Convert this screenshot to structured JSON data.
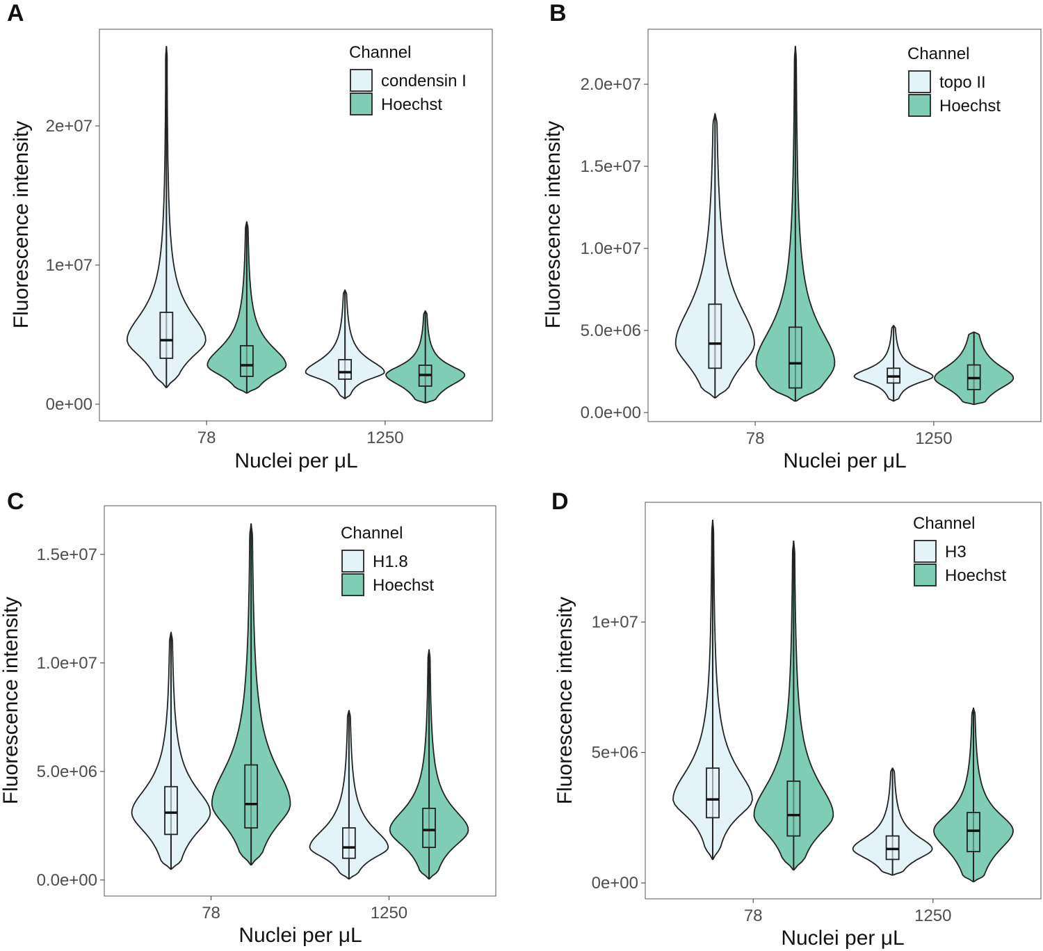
{
  "chart_data": [
    {
      "type": "violin",
      "panel": "A",
      "xlabel": "Nuclei per μL",
      "ylabel": "Fluorescence intensity",
      "legend_title": "Channel",
      "categories": [
        "78",
        "1250"
      ],
      "ylim": [
        -1200000,
        26950000
      ],
      "yticks": [
        {
          "value": 0,
          "label": "0e+00"
        },
        {
          "value": 10000000,
          "label": "1e+07"
        },
        {
          "value": 20000000,
          "label": "2e+07"
        }
      ],
      "series": [
        {
          "name": "condensin I",
          "color": "#e3f3f8",
          "stats": [
            {
              "min": 1200000,
              "q1": 3300000,
              "median": 4600000,
              "q3": 6600000,
              "max": 25700000
            },
            {
              "min": 400000,
              "q1": 1800000,
              "median": 2300000,
              "q3": 3200000,
              "max": 8200000
            }
          ]
        },
        {
          "name": "Hoechst",
          "color": "#7fcdb5",
          "stats": [
            {
              "min": 800000,
              "q1": 2000000,
              "median": 2800000,
              "q3": 4200000,
              "max": 13100000
            },
            {
              "min": 100000,
              "q1": 1300000,
              "median": 2100000,
              "q3": 2800000,
              "max": 6700000
            }
          ]
        }
      ]
    },
    {
      "type": "violin",
      "panel": "B",
      "xlabel": "Nuclei per μL",
      "ylabel": "Fluorescence intensity",
      "legend_title": "Channel",
      "categories": [
        "78",
        "1250"
      ],
      "ylim": [
        -550000,
        23350000
      ],
      "yticks": [
        {
          "value": 0,
          "label": "0.0e+00"
        },
        {
          "value": 5000000,
          "label": "5.0e+06"
        },
        {
          "value": 10000000,
          "label": "1.0e+07"
        },
        {
          "value": 15000000,
          "label": "1.5e+07"
        },
        {
          "value": 20000000,
          "label": "2.0e+07"
        }
      ],
      "series": [
        {
          "name": "topo II",
          "color": "#e3f3f8",
          "stats": [
            {
              "min": 900000,
              "q1": 2700000,
              "median": 4200000,
              "q3": 6600000,
              "max": 18200000
            },
            {
              "min": 700000,
              "q1": 1800000,
              "median": 2200000,
              "q3": 2700000,
              "max": 5300000
            }
          ]
        },
        {
          "name": "Hoechst",
          "color": "#7fcdb5",
          "stats": [
            {
              "min": 700000,
              "q1": 1500000,
              "median": 3000000,
              "q3": 5200000,
              "max": 22300000
            },
            {
              "min": 500000,
              "q1": 1400000,
              "median": 2100000,
              "q3": 2900000,
              "max": 4900000
            }
          ]
        }
      ]
    },
    {
      "type": "violin",
      "panel": "C",
      "xlabel": "Nuclei per μL",
      "ylabel": "Fluorescence intensity",
      "legend_title": "Channel",
      "categories": [
        "78",
        "1250"
      ],
      "ylim": [
        -740000,
        17240000
      ],
      "yticks": [
        {
          "value": 0,
          "label": "0.0e+00"
        },
        {
          "value": 5000000,
          "label": "5.0e+06"
        },
        {
          "value": 10000000,
          "label": "1.0e+07"
        },
        {
          "value": 15000000,
          "label": "1.5e+07"
        }
      ],
      "series": [
        {
          "name": "H1.8",
          "color": "#e3f3f8",
          "stats": [
            {
              "min": 500000,
              "q1": 2100000,
              "median": 3100000,
              "q3": 4300000,
              "max": 11400000
            },
            {
              "min": 50000,
              "q1": 1000000,
              "median": 1500000,
              "q3": 2400000,
              "max": 7800000
            }
          ]
        },
        {
          "name": "Hoechst",
          "color": "#7fcdb5",
          "stats": [
            {
              "min": 700000,
              "q1": 2400000,
              "median": 3500000,
              "q3": 5300000,
              "max": 16400000
            },
            {
              "min": 50000,
              "q1": 1500000,
              "median": 2300000,
              "q3": 3300000,
              "max": 10600000
            }
          ]
        }
      ]
    },
    {
      "type": "violin",
      "panel": "D",
      "xlabel": "Nuclei per μL",
      "ylabel": "Fluorescence intensity",
      "legend_title": "Channel",
      "categories": [
        "78",
        "1250"
      ],
      "ylim": [
        -610000,
        14590000
      ],
      "yticks": [
        {
          "value": 0,
          "label": "0e+00"
        },
        {
          "value": 5000000,
          "label": "5e+06"
        },
        {
          "value": 10000000,
          "label": "1e+07"
        }
      ],
      "series": [
        {
          "name": "H3",
          "color": "#e3f3f8",
          "stats": [
            {
              "min": 900000,
              "q1": 2500000,
              "median": 3200000,
              "q3": 4400000,
              "max": 13900000
            },
            {
              "min": 300000,
              "q1": 900000,
              "median": 1300000,
              "q3": 1800000,
              "max": 4400000
            }
          ]
        },
        {
          "name": "Hoechst",
          "color": "#7fcdb5",
          "stats": [
            {
              "min": 500000,
              "q1": 1800000,
              "median": 2600000,
              "q3": 3900000,
              "max": 13100000
            },
            {
              "min": 50000,
              "q1": 1200000,
              "median": 2000000,
              "q3": 2700000,
              "max": 6700000
            }
          ]
        }
      ]
    }
  ]
}
